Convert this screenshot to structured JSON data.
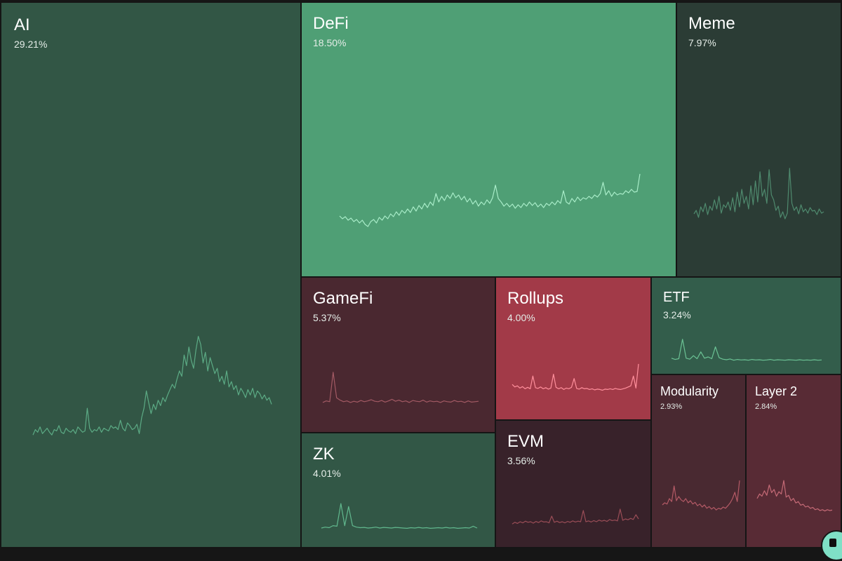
{
  "watermark": "KAITO",
  "chart_data": {
    "type": "treemap",
    "unit": "%",
    "items": [
      {
        "label": "AI",
        "value": "29.21%",
        "share": 29.21,
        "trend": "up",
        "color": "#325645",
        "line_color": "#5cab85",
        "sparkline": [
          0.22,
          0.26,
          0.24,
          0.28,
          0.23,
          0.25,
          0.27,
          0.24,
          0.22,
          0.26,
          0.25,
          0.29,
          0.24,
          0.23,
          0.27,
          0.25,
          0.24,
          0.26,
          0.23,
          0.28,
          0.26,
          0.24,
          0.25,
          0.42,
          0.27,
          0.24,
          0.26,
          0.25,
          0.28,
          0.24,
          0.27,
          0.26,
          0.25,
          0.29,
          0.27,
          0.28,
          0.26,
          0.33,
          0.27,
          0.25,
          0.31,
          0.29,
          0.26,
          0.27,
          0.3,
          0.23,
          0.35,
          0.42,
          0.55,
          0.46,
          0.38,
          0.45,
          0.41,
          0.48,
          0.44,
          0.5,
          0.47,
          0.52,
          0.56,
          0.6,
          0.57,
          0.64,
          0.7,
          0.66,
          0.82,
          0.74,
          0.88,
          0.78,
          0.72,
          0.86,
          0.96,
          0.9,
          0.76,
          0.84,
          0.7,
          0.8,
          0.74,
          0.68,
          0.72,
          0.62,
          0.66,
          0.6,
          0.7,
          0.58,
          0.62,
          0.56,
          0.59,
          0.52,
          0.57,
          0.54,
          0.5,
          0.56,
          0.52,
          0.57,
          0.5,
          0.55,
          0.53,
          0.49,
          0.52,
          0.48,
          0.5,
          0.45
        ]
      },
      {
        "label": "DeFi",
        "value": "18.50%",
        "share": 18.5,
        "trend": "up",
        "color": "#4f9f75",
        "line_color": "#a8ecc8",
        "sparkline": [
          0.3,
          0.26,
          0.29,
          0.24,
          0.27,
          0.22,
          0.25,
          0.2,
          0.24,
          0.18,
          0.15,
          0.22,
          0.25,
          0.2,
          0.28,
          0.24,
          0.3,
          0.26,
          0.33,
          0.29,
          0.36,
          0.31,
          0.38,
          0.34,
          0.4,
          0.35,
          0.43,
          0.37,
          0.45,
          0.4,
          0.48,
          0.42,
          0.5,
          0.45,
          0.62,
          0.5,
          0.58,
          0.52,
          0.6,
          0.55,
          0.63,
          0.56,
          0.6,
          0.53,
          0.58,
          0.5,
          0.55,
          0.47,
          0.52,
          0.44,
          0.5,
          0.46,
          0.53,
          0.48,
          0.56,
          0.74,
          0.55,
          0.5,
          0.44,
          0.48,
          0.43,
          0.47,
          0.41,
          0.46,
          0.42,
          0.48,
          0.44,
          0.5,
          0.45,
          0.49,
          0.43,
          0.47,
          0.42,
          0.48,
          0.45,
          0.5,
          0.46,
          0.52,
          0.48,
          0.66,
          0.5,
          0.47,
          0.55,
          0.5,
          0.57,
          0.52,
          0.56,
          0.54,
          0.58,
          0.55,
          0.6,
          0.57,
          0.62,
          0.78,
          0.6,
          0.66,
          0.58,
          0.64,
          0.6,
          0.62,
          0.61,
          0.66,
          0.63,
          0.68,
          0.64,
          0.65,
          0.9
        ]
      },
      {
        "label": "Meme",
        "value": "7.97%",
        "share": 7.97,
        "trend": "up",
        "color": "#2b3c35",
        "line_color": "#4f8a6e",
        "sparkline": [
          0.35,
          0.4,
          0.3,
          0.45,
          0.38,
          0.5,
          0.34,
          0.46,
          0.4,
          0.55,
          0.42,
          0.6,
          0.36,
          0.48,
          0.44,
          0.52,
          0.4,
          0.58,
          0.38,
          0.66,
          0.45,
          0.7,
          0.5,
          0.6,
          0.42,
          0.75,
          0.48,
          0.82,
          0.52,
          0.95,
          0.6,
          0.7,
          0.5,
          0.98,
          0.62,
          0.55,
          0.4,
          0.46,
          0.3,
          0.38,
          0.28,
          0.36,
          1.0,
          0.5,
          0.4,
          0.45,
          0.35,
          0.48,
          0.38,
          0.42,
          0.36,
          0.44,
          0.39,
          0.4,
          0.34,
          0.42,
          0.36,
          0.38
        ]
      },
      {
        "label": "GameFi",
        "value": "5.37%",
        "share": 5.37,
        "trend": "down",
        "color": "#4a2830",
        "line_color": "#a35a64",
        "sparkline": [
          0.18,
          0.22,
          0.2,
          0.95,
          0.3,
          0.24,
          0.2,
          0.22,
          0.18,
          0.21,
          0.19,
          0.23,
          0.2,
          0.22,
          0.25,
          0.21,
          0.2,
          0.23,
          0.19,
          0.22,
          0.26,
          0.21,
          0.24,
          0.2,
          0.22,
          0.18,
          0.23,
          0.21,
          0.2,
          0.24,
          0.19,
          0.22,
          0.2,
          0.21,
          0.18,
          0.22,
          0.2,
          0.19,
          0.23,
          0.2,
          0.21,
          0.18,
          0.22,
          0.19,
          0.2,
          0.21
        ]
      },
      {
        "label": "Rollups",
        "value": "4.00%",
        "share": 4.0,
        "trend": "down",
        "color": "#a23a48",
        "line_color": "#ff8f9c",
        "sparkline": [
          0.42,
          0.35,
          0.38,
          0.32,
          0.36,
          0.3,
          0.34,
          0.3,
          0.65,
          0.33,
          0.31,
          0.35,
          0.3,
          0.33,
          0.29,
          0.32,
          0.7,
          0.34,
          0.3,
          0.33,
          0.28,
          0.32,
          0.3,
          0.34,
          0.58,
          0.31,
          0.29,
          0.33,
          0.3,
          0.31,
          0.28,
          0.3,
          0.27,
          0.29,
          0.28,
          0.26,
          0.29,
          0.28,
          0.3,
          0.28,
          0.31,
          0.29,
          0.28,
          0.3,
          0.32,
          0.35,
          0.38,
          0.65,
          0.32,
          0.98
        ]
      },
      {
        "label": "ETF",
        "value": "3.24%",
        "share": 3.24,
        "trend": "up",
        "color": "#335d4b",
        "line_color": "#6bc294",
        "sparkline": [
          0.2,
          0.15,
          0.18,
          0.95,
          0.2,
          0.16,
          0.3,
          0.18,
          0.45,
          0.2,
          0.25,
          0.18,
          0.65,
          0.22,
          0.16,
          0.14,
          0.17,
          0.12,
          0.15,
          0.13,
          0.14,
          0.12,
          0.15,
          0.13,
          0.14,
          0.12,
          0.13,
          0.15,
          0.12,
          0.14,
          0.13,
          0.12,
          0.14,
          0.13,
          0.12,
          0.14,
          0.12,
          0.13,
          0.12,
          0.14,
          0.12,
          0.13
        ]
      },
      {
        "label": "ZK",
        "value": "4.01%",
        "share": 4.01,
        "trend": "up",
        "color": "#325746",
        "line_color": "#61b88e",
        "sparkline": [
          0.12,
          0.15,
          0.13,
          0.2,
          0.18,
          0.95,
          0.2,
          0.85,
          0.2,
          0.15,
          0.13,
          0.14,
          0.12,
          0.13,
          0.15,
          0.12,
          0.14,
          0.13,
          0.12,
          0.14,
          0.13,
          0.12,
          0.11,
          0.13,
          0.12,
          0.14,
          0.12,
          0.13,
          0.11,
          0.12,
          0.13,
          0.12,
          0.14,
          0.12,
          0.13,
          0.11,
          0.12,
          0.13,
          0.12,
          0.18,
          0.12
        ]
      },
      {
        "label": "EVM",
        "value": "3.56%",
        "share": 3.56,
        "trend": "down",
        "color": "#38222a",
        "line_color": "#9a4d57",
        "sparkline": [
          0.22,
          0.28,
          0.24,
          0.3,
          0.26,
          0.32,
          0.28,
          0.3,
          0.25,
          0.31,
          0.27,
          0.33,
          0.29,
          0.3,
          0.26,
          0.5,
          0.28,
          0.32,
          0.27,
          0.3,
          0.26,
          0.31,
          0.28,
          0.33,
          0.29,
          0.32,
          0.3,
          0.7,
          0.3,
          0.33,
          0.29,
          0.34,
          0.3,
          0.36,
          0.32,
          0.35,
          0.31,
          0.38,
          0.34,
          0.36,
          0.33,
          0.75,
          0.35,
          0.4,
          0.37,
          0.42,
          0.38,
          0.55,
          0.4
        ]
      },
      {
        "label": "Modularity",
        "value": "2.93%",
        "share": 2.93,
        "trend": "down",
        "color": "#492931",
        "line_color": "#b45a66",
        "sparkline": [
          0.4,
          0.45,
          0.42,
          0.55,
          0.48,
          0.85,
          0.5,
          0.6,
          0.52,
          0.48,
          0.55,
          0.45,
          0.5,
          0.42,
          0.46,
          0.38,
          0.42,
          0.35,
          0.4,
          0.32,
          0.36,
          0.3,
          0.34,
          0.28,
          0.32,
          0.3,
          0.35,
          0.32,
          0.38,
          0.45,
          0.55,
          0.7,
          0.48,
          0.98
        ]
      },
      {
        "label": "Layer 2",
        "value": "2.84%",
        "share": 2.84,
        "trend": "down",
        "color": "#582b35",
        "line_color": "#c46a76",
        "sparkline": [
          0.55,
          0.65,
          0.6,
          0.72,
          0.62,
          0.85,
          0.68,
          0.75,
          0.6,
          0.7,
          0.65,
          0.95,
          0.58,
          0.62,
          0.5,
          0.55,
          0.45,
          0.48,
          0.4,
          0.42,
          0.36,
          0.38,
          0.33,
          0.35,
          0.3,
          0.32,
          0.28,
          0.3,
          0.27,
          0.3,
          0.28,
          0.29
        ]
      }
    ]
  }
}
